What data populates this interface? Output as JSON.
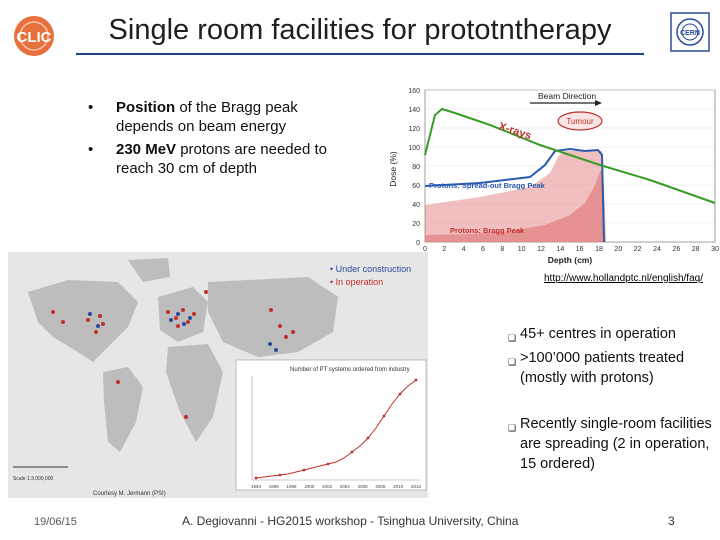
{
  "slide": {
    "title": "Single room facilities for prototntherapy",
    "bullets": [
      {
        "bold": "Position ",
        "text": "of the Bragg peak depends on beam energy"
      },
      {
        "bold": "230 MeV",
        "text": "  protons are needed to reach 30 cm of depth"
      }
    ],
    "url": "http://www.hollandptc.nl/english/faq/",
    "stats": [
      "45+ centres in operation",
      ">100’000 patients treated (mostly with protons)",
      "Recently single-room facilities are spreading (2 in operation, 15 ordered)"
    ],
    "footer": {
      "date": "19/06/15",
      "center": "A. Degiovanni - HG2015 workshop - Tsinghua University, China",
      "page": "3"
    }
  },
  "logos": {
    "clic": "CLIC",
    "cern": "CERN"
  },
  "bragg": {
    "beam_direction": "Beam Direction",
    "tumour": "Tumour",
    "xrays": "X-rays",
    "sobp": "Protons: Spread-out Bragg Peak",
    "bp": "Protons: Bragg Peak",
    "ylabel": "Dose (%)",
    "xlabel": "Depth (cm)",
    "yticks": [
      "0",
      "20",
      "40",
      "60",
      "80",
      "100",
      "120",
      "140",
      "160"
    ],
    "xticks": [
      "0",
      "2",
      "4",
      "6",
      "8",
      "10",
      "12",
      "14",
      "16",
      "18",
      "20",
      "22",
      "24",
      "26",
      "28",
      "30"
    ]
  },
  "map": {
    "legend_construction": "• Under construction",
    "legend_operation": "• In operation",
    "inset_title": "Number of PT systems ordered from industry",
    "inset_years": [
      "1994",
      "1996",
      "1998",
      "2000",
      "2002",
      "2004",
      "2006",
      "2008",
      "2010",
      "2012"
    ],
    "scale_label": "Scale 1:3,000,000",
    "credit": "Courtesy M. Jermann (PSI)"
  },
  "colors": {
    "accent": "#1f3f8f",
    "sobp": "#2a5bb0",
    "bragg_fill": "#e8a0a0",
    "xray": "#3a9a2a"
  }
}
